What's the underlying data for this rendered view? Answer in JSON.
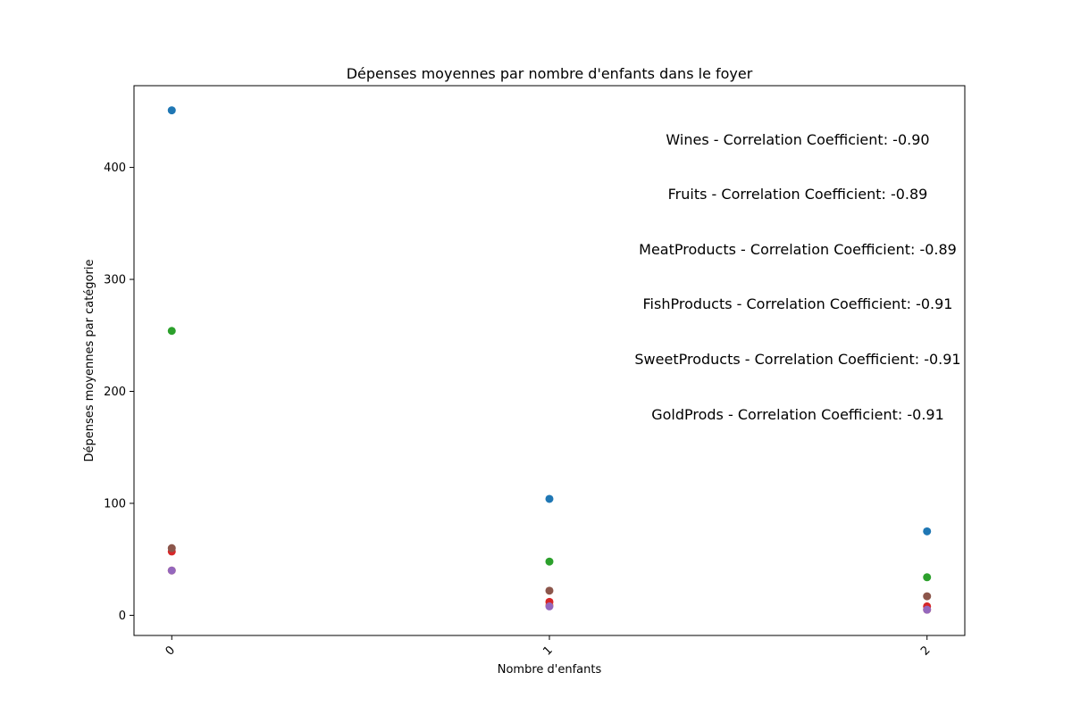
{
  "chart_data": {
    "type": "scatter",
    "title": "Dépenses moyennes par nombre d'enfants dans le foyer",
    "xlabel": "Nombre d'enfants",
    "ylabel": "Dépenses moyennes par catégorie",
    "x_ticks": [
      "0",
      "1",
      "2"
    ],
    "y_ticks": [
      0,
      100,
      200,
      300,
      400
    ],
    "xlim": [
      -0.1,
      2.1
    ],
    "ylim": [
      -18,
      473
    ],
    "grid": false,
    "series": [
      {
        "color": "#1f77b4",
        "x": [
          0,
          1,
          2
        ],
        "y": [
          451,
          104,
          75
        ]
      },
      {
        "color": "#ff7f0e",
        "x": [
          0,
          1,
          2
        ],
        "y": [
          40,
          9,
          5
        ]
      },
      {
        "color": "#2ca02c",
        "x": [
          0,
          1,
          2
        ],
        "y": [
          254,
          48,
          34
        ]
      },
      {
        "color": "#d62728",
        "x": [
          0,
          1,
          2
        ],
        "y": [
          57,
          12,
          8
        ]
      },
      {
        "color": "#9467bd",
        "x": [
          0,
          1,
          2
        ],
        "y": [
          40,
          8,
          5
        ]
      },
      {
        "color": "#8c564b",
        "x": [
          0,
          1,
          2
        ],
        "y": [
          60,
          22,
          17
        ]
      }
    ],
    "annotations": [
      "Wines - Correlation Coefficient: -0.90",
      "Fruits - Correlation Coefficient: -0.89",
      "MeatProducts - Correlation Coefficient: -0.89",
      "FishProducts - Correlation Coefficient: -0.91",
      "SweetProducts - Correlation Coefficient: -0.91",
      "GoldProds - Correlation Coefficient: -0.91"
    ]
  }
}
